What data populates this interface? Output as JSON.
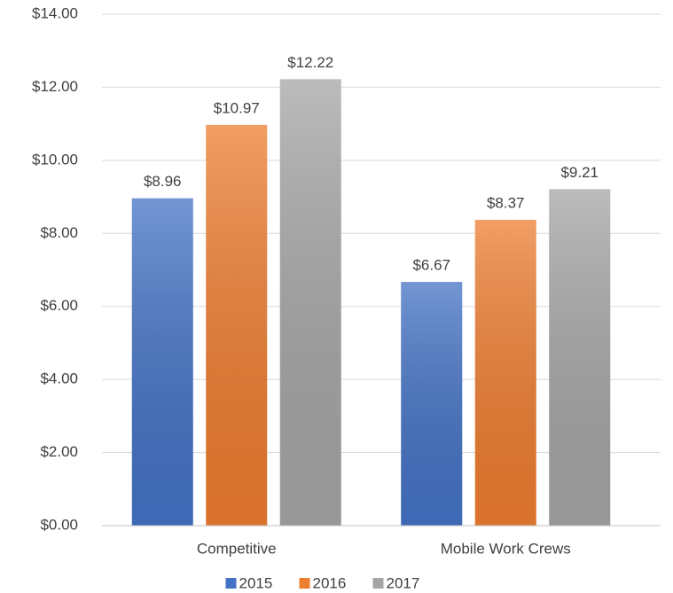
{
  "chart_data": {
    "type": "bar",
    "categories": [
      "Competitive",
      "Mobile Work Crews"
    ],
    "series": [
      {
        "name": "2015",
        "color": "#4472c4",
        "values": [
          8.96,
          6.67
        ],
        "value_labels": [
          "$8.96",
          "$6.67"
        ]
      },
      {
        "name": "2016",
        "color": "#ed7d31",
        "values": [
          10.97,
          8.37
        ],
        "value_labels": [
          "$10.97",
          "$8.37"
        ]
      },
      {
        "name": "2017",
        "color": "#a5a5a5",
        "values": [
          12.22,
          9.21
        ],
        "value_labels": [
          "$12.22",
          "$9.21"
        ]
      }
    ],
    "ylim": [
      0,
      14
    ],
    "yticks": [
      {
        "value": 0,
        "label": "$0.00"
      },
      {
        "value": 2,
        "label": "$2.00"
      },
      {
        "value": 4,
        "label": "$4.00"
      },
      {
        "value": 6,
        "label": "$6.00"
      },
      {
        "value": 8,
        "label": "$8.00"
      },
      {
        "value": 10,
        "label": "$10.00"
      },
      {
        "value": 12,
        "label": "$12.00"
      },
      {
        "value": 14,
        "label": "$14.00"
      }
    ],
    "grid": true,
    "legend": "bottom"
  }
}
